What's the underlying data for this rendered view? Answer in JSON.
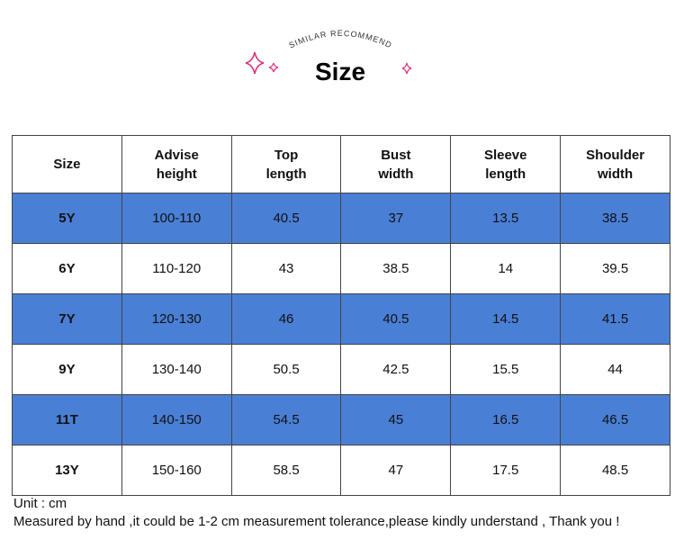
{
  "header": {
    "subtitle": "SIMILAR RECOMMEND",
    "title": "Size"
  },
  "table": {
    "columns": [
      [
        "Size"
      ],
      [
        "Advise",
        "height"
      ],
      [
        "Top",
        "length"
      ],
      [
        "Bust",
        "width"
      ],
      [
        "Sleeve",
        "length"
      ],
      [
        "Shoulder",
        "width"
      ]
    ],
    "rows": [
      [
        "5Y",
        "100-110",
        "40.5",
        "37",
        "13.5",
        "38.5"
      ],
      [
        "6Y",
        "110-120",
        "43",
        "38.5",
        "14",
        "39.5"
      ],
      [
        "7Y",
        "120-130",
        "46",
        "40.5",
        "14.5",
        "41.5"
      ],
      [
        "9Y",
        "130-140",
        "50.5",
        "42.5",
        "15.5",
        "44"
      ],
      [
        "11T",
        "140-150",
        "54.5",
        "45",
        "16.5",
        "46.5"
      ],
      [
        "13Y",
        "150-160",
        "58.5",
        "47",
        "17.5",
        "48.5"
      ]
    ]
  },
  "footer": {
    "unit": "Unit : cm",
    "note": "Measured by hand ,it could be 1-2 cm measurement tolerance,please kindly understand , Thank you !"
  }
}
